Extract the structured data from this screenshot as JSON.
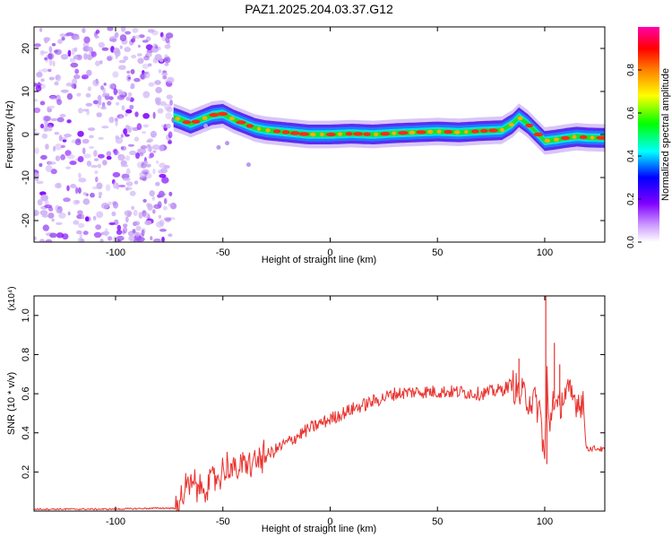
{
  "title": "PAZ1.2025.204.03.37.G12",
  "chart_data": [
    {
      "type": "heatmap",
      "xlabel": "Height of straight line (km)",
      "ylabel": "Frequency (Hz)",
      "xlim": [
        -138,
        128
      ],
      "ylim": [
        -25,
        25
      ],
      "xticks": [
        -100,
        -50,
        0,
        50,
        100
      ],
      "yticks": [
        -20,
        -10,
        0,
        10,
        20
      ],
      "colorbar": {
        "label": "Normalized spectral amplitude",
        "range": [
          0,
          1
        ],
        "ticks": [
          "0.0",
          "0.2",
          "0.4",
          "0.6",
          "0.8"
        ],
        "colors": [
          "#ffffff",
          "#cc99ff",
          "#7f00ff",
          "#0000ff",
          "#00ffff",
          "#00ff00",
          "#ffff00",
          "#ff7f00",
          "#ff0000",
          "#ff00aa"
        ]
      },
      "noise_region_x": [
        -138,
        -73
      ],
      "ridge": {
        "x": [
          -73,
          -70,
          -65,
          -60,
          -55,
          -50,
          -45,
          -40,
          -35,
          -30,
          -20,
          -10,
          0,
          10,
          20,
          30,
          40,
          50,
          60,
          70,
          80,
          85,
          88,
          92,
          96,
          100,
          105,
          110,
          115,
          120,
          128
        ],
        "y": [
          4,
          3.5,
          2.5,
          3.5,
          4.5,
          4.8,
          3.5,
          2.5,
          1.5,
          1,
          0.5,
          0,
          0,
          0.2,
          0,
          0.3,
          0.5,
          0.7,
          0.5,
          0.8,
          1,
          2.5,
          4,
          2.5,
          0.5,
          -1.5,
          -1.2,
          -0.8,
          -0.5,
          -0.7,
          -0.8
        ]
      }
    },
    {
      "type": "line",
      "xlabel": "Height of straight line (km)",
      "ylabel": "SNR (10 * v/v)",
      "multiplier": "(x10⁴)",
      "xlim": [
        -138,
        128
      ],
      "ylim": [
        0,
        1.1
      ],
      "xticks": [
        -100,
        -50,
        0,
        50,
        100
      ],
      "yticks": [
        0.2,
        0.4,
        0.6,
        0.8,
        1.0
      ],
      "color": "#e8332f",
      "series": [
        {
          "x": [
            -138,
            -120,
            -100,
            -80,
            -72,
            -70,
            -67,
            -64,
            -60,
            -55,
            -50,
            -47,
            -45,
            -40,
            -35,
            -30,
            -20,
            -10,
            0,
            10,
            20,
            25,
            30,
            40,
            50,
            60,
            70,
            80,
            85,
            88,
            92,
            96,
            98,
            100,
            101,
            102,
            104,
            106,
            108,
            110,
            113,
            116,
            118,
            119,
            120,
            125,
            128
          ],
          "y": [
            0.01,
            0.01,
            0.01,
            0.015,
            0.015,
            0.06,
            0.11,
            0.13,
            0.12,
            0.15,
            0.2,
            0.24,
            0.2,
            0.23,
            0.25,
            0.28,
            0.35,
            0.42,
            0.47,
            0.52,
            0.56,
            0.58,
            0.6,
            0.61,
            0.61,
            0.61,
            0.6,
            0.62,
            0.65,
            0.6,
            0.58,
            0.55,
            0.5,
            0.25,
            0.7,
            0.4,
            0.6,
            0.5,
            0.58,
            0.6,
            0.58,
            0.56,
            0.57,
            0.35,
            0.32,
            0.32,
            0.31
          ]
        }
      ],
      "spikes": [
        {
          "x": 88,
          "y": 0.78
        },
        {
          "x": 100.5,
          "y": 1.1
        },
        {
          "x": 101,
          "y": 0.24
        },
        {
          "x": 104.5,
          "y": 0.86
        },
        {
          "x": 107,
          "y": 0.75
        }
      ]
    }
  ]
}
